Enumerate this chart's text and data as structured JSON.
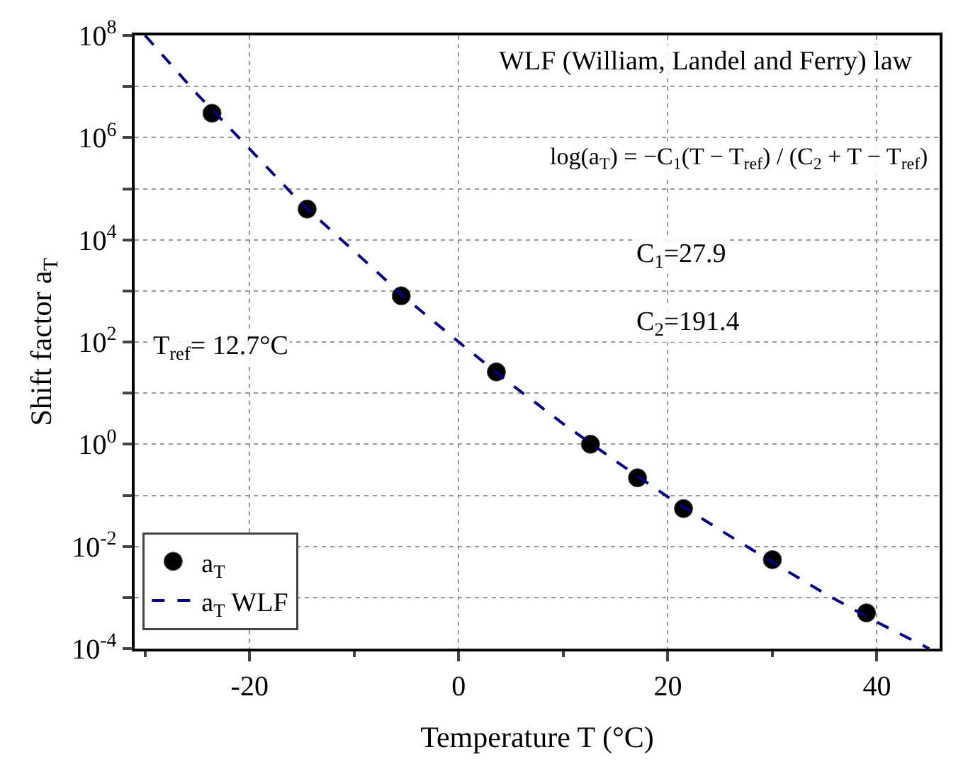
{
  "chart_data": {
    "type": "scatter",
    "xlabel": "Temperature T (°C)",
    "ylabel": "Shift factor a$_{T}$",
    "xlim": [
      -31,
      46
    ],
    "xticks": [
      {
        "value": -30,
        "label": null
      },
      -20,
      {
        "value": -10,
        "label": null
      },
      0,
      {
        "value": 10,
        "label": null
      },
      20,
      {
        "value": 30,
        "label": null
      },
      40
    ],
    "ylim": [
      0.0001,
      100000000
    ],
    "yticks": [
      {
        "value": 0.0001,
        "label": "10$^{-4}$"
      },
      {
        "value": 0.001,
        "label": null
      },
      {
        "value": 0.01,
        "label": "10$^{-2}$"
      },
      {
        "value": 0.1,
        "label": null
      },
      {
        "value": 1,
        "label": "10$^{0}$"
      },
      {
        "value": 10,
        "label": null
      },
      {
        "value": 100,
        "label": "10$^{2}$"
      },
      {
        "value": 1000,
        "label": null
      },
      {
        "value": 10000,
        "label": "10$^{4}$"
      },
      {
        "value": 100000,
        "label": null
      },
      {
        "value": 1000000,
        "label": "10$^{6}$"
      },
      {
        "value": 10000000,
        "label": null
      },
      {
        "value": 100000000,
        "label": "10$^{8}$"
      }
    ],
    "log": "y",
    "grid": true,
    "legend": "bottom left",
    "series": [
      {
        "name": "a$_{T}$",
        "marker": "circle",
        "color": "#000000",
        "x": [
          -23.6,
          -14.5,
          -5.5,
          3.6,
          12.6,
          17.1,
          21.5,
          30.0,
          39.0
        ],
        "values": [
          3000000,
          40000,
          800,
          26,
          1,
          0.22,
          0.055,
          0.0055,
          0.0005
        ]
      },
      {
        "name": "a$_{T}$ WLF",
        "type": "line",
        "line_style": "dashed",
        "marker": "none",
        "color": "#000080",
        "x": [
          -30,
          -25,
          -20,
          -15,
          -10,
          -5,
          0,
          5,
          10,
          15,
          20,
          25,
          30,
          35,
          40,
          45
        ],
        "values": [
          100000000,
          7000000,
          600000,
          50000,
          6000,
          700,
          100,
          15,
          2.5,
          0.47,
          0.093,
          0.021,
          0.0049,
          0.0012,
          0.00033,
          0.0001
        ]
      }
    ],
    "annotations": [
      "WLF (William, Landel and Ferry) law",
      "log(a$_{T}$) = −C$_{1}$(T − T$_{ref}$) / (C$_{2}$ + T − T$_{ref}$)",
      "C$_{1}$=27.9",
      "C$_{2}$=191.4",
      "T$_{ref}$= 12.7°C"
    ]
  }
}
